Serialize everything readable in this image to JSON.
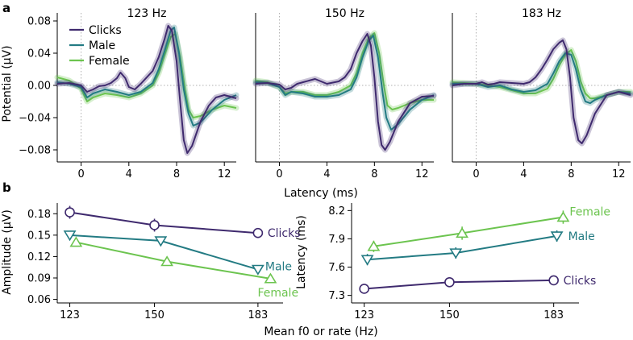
{
  "panel_labels": {
    "a": "a",
    "b": "b"
  },
  "colors": {
    "clicks": "#3f2a6e",
    "male": "#237b83",
    "female": "#6cc44f",
    "zero_line": "#b0b0b0"
  },
  "chart_data": [
    {
      "type": "line",
      "title": "123 Hz",
      "xlabel": "",
      "ylabel": "Potential (µV)",
      "xlim": [
        -2,
        13
      ],
      "ylim": [
        -0.095,
        0.09
      ],
      "xticks": [
        0,
        4,
        8,
        12
      ],
      "yticks": [
        -0.08,
        -0.04,
        0.0,
        0.04,
        0.08
      ],
      "ytick_labels": [
        "−0.08",
        "−0.04",
        "0.00",
        "0.04",
        "0.08"
      ],
      "legend": [
        "Clicks",
        "Male",
        "Female"
      ],
      "series": [
        {
          "name": "Clicks",
          "points": [
            [
              -2,
              0.002
            ],
            [
              -1,
              0.003
            ],
            [
              0,
              0.0
            ],
            [
              0.5,
              -0.008
            ],
            [
              1,
              -0.005
            ],
            [
              1.5,
              -0.001
            ],
            [
              2,
              0.0
            ],
            [
              2.5,
              0.003
            ],
            [
              3,
              0.009
            ],
            [
              3.3,
              0.016
            ],
            [
              3.7,
              0.009
            ],
            [
              4,
              -0.002
            ],
            [
              4.5,
              -0.005
            ],
            [
              5,
              0.002
            ],
            [
              5.5,
              0.01
            ],
            [
              6,
              0.018
            ],
            [
              6.5,
              0.035
            ],
            [
              7,
              0.058
            ],
            [
              7.3,
              0.074
            ],
            [
              7.6,
              0.068
            ],
            [
              8,
              0.03
            ],
            [
              8.3,
              -0.02
            ],
            [
              8.6,
              -0.068
            ],
            [
              8.9,
              -0.084
            ],
            [
              9.3,
              -0.075
            ],
            [
              10,
              -0.045
            ],
            [
              10.7,
              -0.025
            ],
            [
              11.3,
              -0.015
            ],
            [
              12,
              -0.012
            ],
            [
              13,
              -0.016
            ]
          ]
        },
        {
          "name": "Male",
          "points": [
            [
              -2,
              0.004
            ],
            [
              -1,
              0.002
            ],
            [
              0,
              -0.002
            ],
            [
              0.5,
              -0.015
            ],
            [
              1,
              -0.01
            ],
            [
              2,
              -0.005
            ],
            [
              3,
              -0.008
            ],
            [
              4,
              -0.012
            ],
            [
              5,
              -0.008
            ],
            [
              6,
              0.003
            ],
            [
              6.5,
              0.02
            ],
            [
              7,
              0.043
            ],
            [
              7.5,
              0.068
            ],
            [
              7.8,
              0.072
            ],
            [
              8.2,
              0.04
            ],
            [
              8.6,
              -0.005
            ],
            [
              9,
              -0.035
            ],
            [
              9.4,
              -0.05
            ],
            [
              10,
              -0.046
            ],
            [
              11,
              -0.03
            ],
            [
              12,
              -0.018
            ],
            [
              13,
              -0.012
            ]
          ]
        },
        {
          "name": "Female",
          "points": [
            [
              -2,
              0.01
            ],
            [
              -1,
              0.006
            ],
            [
              0,
              -0.004
            ],
            [
              0.5,
              -0.02
            ],
            [
              1,
              -0.015
            ],
            [
              2,
              -0.01
            ],
            [
              3,
              -0.012
            ],
            [
              4,
              -0.015
            ],
            [
              5,
              -0.01
            ],
            [
              6,
              0.0
            ],
            [
              6.5,
              0.015
            ],
            [
              7,
              0.038
            ],
            [
              7.5,
              0.06
            ],
            [
              7.9,
              0.064
            ],
            [
              8.3,
              0.035
            ],
            [
              8.7,
              -0.005
            ],
            [
              9,
              -0.03
            ],
            [
              9.4,
              -0.04
            ],
            [
              10,
              -0.038
            ],
            [
              11,
              -0.03
            ],
            [
              12,
              -0.025
            ],
            [
              13,
              -0.028
            ]
          ]
        }
      ]
    },
    {
      "type": "line",
      "title": "150 Hz",
      "xlabel": "Latency (ms)",
      "ylabel": "",
      "xlim": [
        -2,
        13
      ],
      "ylim": [
        -0.095,
        0.09
      ],
      "xticks": [
        0,
        4,
        8,
        12
      ],
      "series": [
        {
          "name": "Clicks",
          "points": [
            [
              -2,
              0.002
            ],
            [
              -1,
              0.003
            ],
            [
              0,
              0.001
            ],
            [
              0.5,
              -0.005
            ],
            [
              1,
              -0.003
            ],
            [
              1.5,
              0.002
            ],
            [
              2,
              0.004
            ],
            [
              2.5,
              0.006
            ],
            [
              3,
              0.008
            ],
            [
              3.5,
              0.005
            ],
            [
              4,
              0.002
            ],
            [
              5,
              0.005
            ],
            [
              5.5,
              0.01
            ],
            [
              6,
              0.02
            ],
            [
              6.5,
              0.04
            ],
            [
              7,
              0.055
            ],
            [
              7.4,
              0.064
            ],
            [
              7.7,
              0.05
            ],
            [
              8,
              0.01
            ],
            [
              8.3,
              -0.045
            ],
            [
              8.6,
              -0.074
            ],
            [
              8.9,
              -0.08
            ],
            [
              9.3,
              -0.07
            ],
            [
              10,
              -0.045
            ],
            [
              11,
              -0.022
            ],
            [
              12,
              -0.014
            ],
            [
              13,
              -0.013
            ]
          ]
        },
        {
          "name": "Male",
          "points": [
            [
              -2,
              0.004
            ],
            [
              -1,
              0.003
            ],
            [
              0,
              -0.002
            ],
            [
              0.5,
              -0.012
            ],
            [
              1,
              -0.008
            ],
            [
              2,
              -0.01
            ],
            [
              3,
              -0.014
            ],
            [
              4,
              -0.014
            ],
            [
              5,
              -0.012
            ],
            [
              6,
              -0.005
            ],
            [
              6.5,
              0.01
            ],
            [
              7,
              0.035
            ],
            [
              7.5,
              0.055
            ],
            [
              7.9,
              0.062
            ],
            [
              8.3,
              0.035
            ],
            [
              8.7,
              -0.01
            ],
            [
              9,
              -0.04
            ],
            [
              9.4,
              -0.055
            ],
            [
              10,
              -0.048
            ],
            [
              11,
              -0.03
            ],
            [
              12,
              -0.018
            ],
            [
              13,
              -0.012
            ]
          ]
        },
        {
          "name": "Female",
          "points": [
            [
              -2,
              0.006
            ],
            [
              -1,
              0.004
            ],
            [
              0,
              -0.002
            ],
            [
              0.5,
              -0.01
            ],
            [
              1,
              -0.008
            ],
            [
              2,
              -0.008
            ],
            [
              3,
              -0.012
            ],
            [
              4,
              -0.012
            ],
            [
              5,
              -0.008
            ],
            [
              6,
              0.0
            ],
            [
              6.5,
              0.015
            ],
            [
              7,
              0.04
            ],
            [
              7.5,
              0.058
            ],
            [
              8,
              0.065
            ],
            [
              8.4,
              0.04
            ],
            [
              8.8,
              0.0
            ],
            [
              9.1,
              -0.025
            ],
            [
              9.5,
              -0.03
            ],
            [
              10,
              -0.028
            ],
            [
              11,
              -0.022
            ],
            [
              12,
              -0.018
            ],
            [
              13,
              -0.018
            ]
          ]
        }
      ]
    },
    {
      "type": "line",
      "title": "183 Hz",
      "xlabel": "",
      "ylabel": "",
      "xlim": [
        -2,
        13
      ],
      "ylim": [
        -0.095,
        0.09
      ],
      "xticks": [
        0,
        4,
        8,
        12
      ],
      "series": [
        {
          "name": "Clicks",
          "points": [
            [
              -2,
              0.0
            ],
            [
              -1,
              0.002
            ],
            [
              0,
              0.002
            ],
            [
              0.5,
              0.004
            ],
            [
              1,
              0.001
            ],
            [
              1.5,
              0.002
            ],
            [
              2,
              0.004
            ],
            [
              3,
              0.003
            ],
            [
              4,
              0.002
            ],
            [
              4.5,
              0.004
            ],
            [
              5,
              0.01
            ],
            [
              5.5,
              0.02
            ],
            [
              6,
              0.032
            ],
            [
              6.5,
              0.045
            ],
            [
              7,
              0.053
            ],
            [
              7.3,
              0.056
            ],
            [
              7.6,
              0.045
            ],
            [
              7.9,
              0.01
            ],
            [
              8.2,
              -0.04
            ],
            [
              8.6,
              -0.068
            ],
            [
              8.9,
              -0.072
            ],
            [
              9.3,
              -0.062
            ],
            [
              10,
              -0.035
            ],
            [
              11,
              -0.012
            ],
            [
              12,
              -0.008
            ],
            [
              13,
              -0.012
            ]
          ]
        },
        {
          "name": "Male",
          "points": [
            [
              -2,
              0.002
            ],
            [
              -1,
              0.002
            ],
            [
              0,
              0.002
            ],
            [
              1,
              -0.002
            ],
            [
              2,
              0.0
            ],
            [
              3,
              -0.005
            ],
            [
              4,
              -0.008
            ],
            [
              5,
              -0.006
            ],
            [
              6,
              0.002
            ],
            [
              6.5,
              0.015
            ],
            [
              7,
              0.03
            ],
            [
              7.5,
              0.04
            ],
            [
              8,
              0.038
            ],
            [
              8.4,
              0.02
            ],
            [
              8.8,
              -0.005
            ],
            [
              9.2,
              -0.02
            ],
            [
              9.6,
              -0.022
            ],
            [
              10,
              -0.018
            ],
            [
              11,
              -0.012
            ],
            [
              12,
              -0.008
            ],
            [
              13,
              -0.01
            ]
          ]
        },
        {
          "name": "Female",
          "points": [
            [
              -2,
              0.004
            ],
            [
              -1,
              0.003
            ],
            [
              0,
              0.002
            ],
            [
              1,
              0.0
            ],
            [
              2,
              -0.002
            ],
            [
              3,
              -0.006
            ],
            [
              4,
              -0.01
            ],
            [
              5,
              -0.01
            ],
            [
              6,
              -0.004
            ],
            [
              6.5,
              0.008
            ],
            [
              7,
              0.025
            ],
            [
              7.5,
              0.038
            ],
            [
              8,
              0.044
            ],
            [
              8.4,
              0.03
            ],
            [
              8.8,
              0.005
            ],
            [
              9.2,
              -0.01
            ],
            [
              9.6,
              -0.016
            ],
            [
              10,
              -0.016
            ],
            [
              11,
              -0.012
            ],
            [
              12,
              -0.008
            ],
            [
              13,
              -0.008
            ]
          ]
        }
      ]
    },
    {
      "type": "line",
      "title": "",
      "xlabel": "Mean f0 or rate (Hz)",
      "ylabel": "Amplitude (µV)",
      "xlim": [
        119,
        191
      ],
      "ylim": [
        0.055,
        0.195
      ],
      "xticks": [
        123,
        150,
        183
      ],
      "yticks": [
        0.06,
        0.09,
        0.12,
        0.15,
        0.18
      ],
      "ytick_labels": [
        "0.06",
        "0.09",
        "0.12",
        "0.15",
        "0.18"
      ],
      "series": [
        {
          "name": "Clicks",
          "marker": "circle",
          "x": [
            123,
            150,
            183
          ],
          "y": [
            0.182,
            0.164,
            0.153
          ],
          "err": [
            0.009,
            0.009,
            0.007
          ],
          "end_label": "Clicks"
        },
        {
          "name": "Male",
          "marker": "triangle-down",
          "x": [
            123,
            152,
            183
          ],
          "y": [
            0.15,
            0.142,
            0.102
          ],
          "err": [
            0.006,
            0.006,
            0.005
          ],
          "end_label": "Male"
        },
        {
          "name": "Female",
          "marker": "triangle-up",
          "x": [
            125,
            154,
            187
          ],
          "y": [
            0.14,
            0.113,
            0.089
          ],
          "err": [
            0.006,
            0.006,
            0.006
          ],
          "end_label": "Female"
        }
      ]
    },
    {
      "type": "line",
      "title": "",
      "xlabel": "",
      "ylabel": "Latency (ms)",
      "xlim": [
        119,
        191
      ],
      "ylim": [
        7.22,
        8.28
      ],
      "xticks": [
        123,
        150,
        183
      ],
      "yticks": [
        7.3,
        7.6,
        7.9,
        8.2
      ],
      "ytick_labels": [
        "7.3",
        "7.6",
        "7.9",
        "8.2"
      ],
      "series": [
        {
          "name": "Clicks",
          "marker": "circle",
          "x": [
            123,
            150,
            183
          ],
          "y": [
            7.37,
            7.44,
            7.46
          ],
          "err": [
            0.03,
            0.04,
            0.04
          ],
          "end_label": "Clicks"
        },
        {
          "name": "Male",
          "marker": "triangle-down",
          "x": [
            124,
            152,
            184
          ],
          "y": [
            7.68,
            7.75,
            7.93
          ],
          "err": [
            0.06,
            0.06,
            0.06
          ],
          "end_label": "Male"
        },
        {
          "name": "Female",
          "marker": "triangle-up",
          "x": [
            126,
            154,
            186
          ],
          "y": [
            7.82,
            7.96,
            8.13
          ],
          "err": [
            0.06,
            0.07,
            0.07
          ],
          "end_label": "Female"
        }
      ]
    }
  ]
}
